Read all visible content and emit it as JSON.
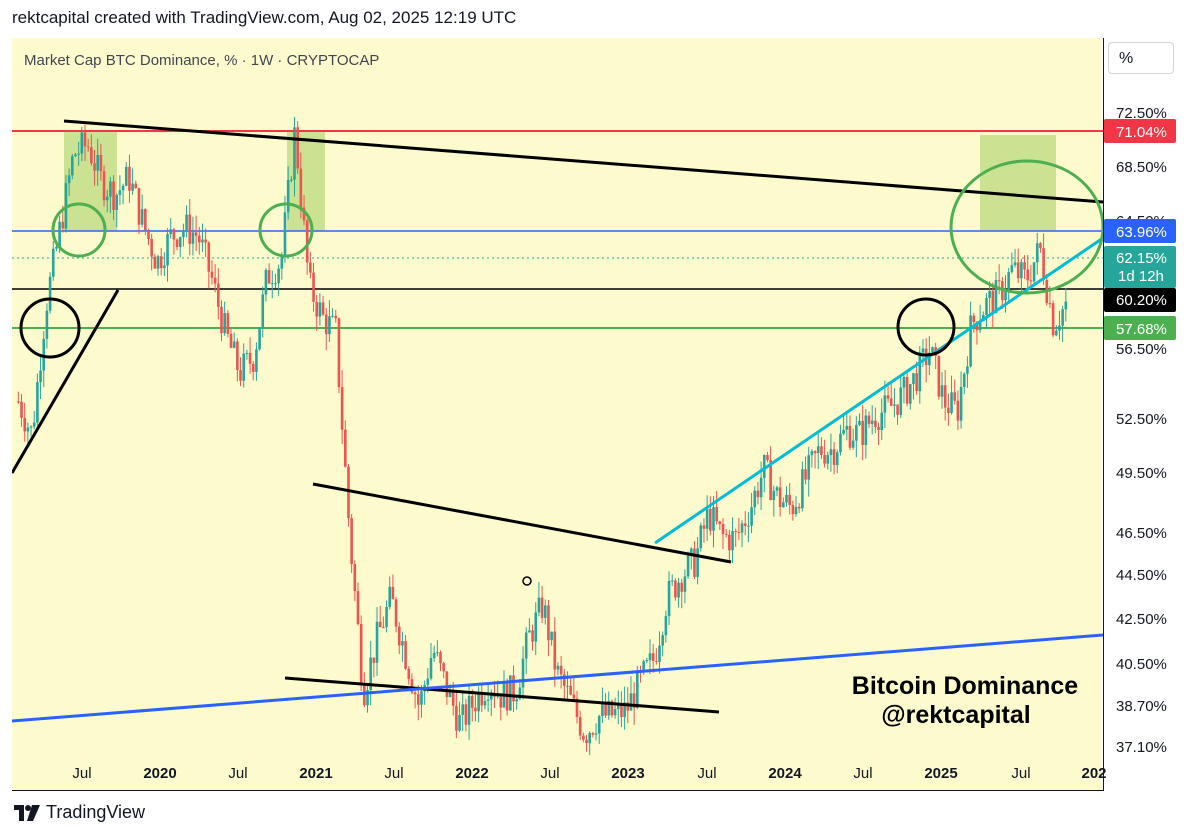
{
  "header": {
    "credit": "rektcapital created with TradingView.com, Aug 02, 2025 12:19 UTC"
  },
  "legend": {
    "symbol_title": "Market Cap BTC Dominance, % · 1W · CRYPTOCAP"
  },
  "unit_button": "%",
  "watermark": {
    "line1": "Bitcoin Dominance",
    "line2": "@rektcapital"
  },
  "footer": {
    "brand": "TradingView",
    "logo_icon": "tradingview-logo-icon"
  },
  "colors": {
    "background": "#fdfbce",
    "up_candle": "#26a69a",
    "down_candle": "#ef5350",
    "resistance_red": "#f23645",
    "level_blue": "#2962ff",
    "level_green": "#4caf50",
    "trend_cyan": "#00bcd4",
    "highlight_green": "#8bc34a"
  },
  "chart_data": {
    "type": "candlestick",
    "title": "Market Cap BTC Dominance, % · 1W · CRYPTOCAP",
    "x_axis": {
      "tick_labels": [
        "Jul",
        "2020",
        "Jul",
        "2021",
        "Jul",
        "2022",
        "Jul",
        "2023",
        "Jul",
        "2024",
        "Jul",
        "2025",
        "Jul",
        "202"
      ],
      "range": [
        "2019-04",
        "2025-11"
      ]
    },
    "y_axis": {
      "unit": "%",
      "tick_labels": [
        "72.50%",
        "68.50%",
        "64.50%",
        "56.50%",
        "52.50%",
        "49.50%",
        "46.50%",
        "44.50%",
        "42.50%",
        "40.50%",
        "38.70%",
        "37.10%"
      ],
      "range": [
        36.9,
        75.8
      ]
    },
    "price_levels": [
      {
        "label": "71.04%",
        "value": 71.04,
        "color": "#f23645",
        "style": "solid"
      },
      {
        "label": "63.96%",
        "value": 63.96,
        "color": "#2962ff",
        "style": "solid"
      },
      {
        "label": "62.15%",
        "sublabel": "1d 12h",
        "value": 62.15,
        "color": "#26a69a",
        "style": "dotted",
        "note": "current price"
      },
      {
        "label": "60.20%",
        "value": 60.2,
        "color": "#000000",
        "style": "solid"
      },
      {
        "label": "57.68%",
        "value": 57.68,
        "color": "#4caf50",
        "style": "solid"
      }
    ],
    "series_close": [
      {
        "date": "2019-04",
        "value": 57.0
      },
      {
        "date": "2019-05",
        "value": 55.3
      },
      {
        "date": "2019-06",
        "value": 62.0
      },
      {
        "date": "2019-07",
        "value": 65.8
      },
      {
        "date": "2019-08",
        "value": 69.8
      },
      {
        "date": "2019-09",
        "value": 70.3
      },
      {
        "date": "2019-10",
        "value": 68.4
      },
      {
        "date": "2019-11",
        "value": 67.7
      },
      {
        "date": "2019-12",
        "value": 68.6
      },
      {
        "date": "2020-01",
        "value": 66.2
      },
      {
        "date": "2020-02",
        "value": 64.2
      },
      {
        "date": "2020-03",
        "value": 65.5
      },
      {
        "date": "2020-04",
        "value": 66.0
      },
      {
        "date": "2020-05",
        "value": 65.6
      },
      {
        "date": "2020-06",
        "value": 63.3
      },
      {
        "date": "2020-07",
        "value": 60.5
      },
      {
        "date": "2020-08",
        "value": 58.5
      },
      {
        "date": "2020-09",
        "value": 59.3
      },
      {
        "date": "2020-10",
        "value": 63.5
      },
      {
        "date": "2020-11",
        "value": 64.3
      },
      {
        "date": "2020-12",
        "value": 71.0
      },
      {
        "date": "2021-01",
        "value": 63.0
      },
      {
        "date": "2021-02",
        "value": 61.3
      },
      {
        "date": "2021-03",
        "value": 60.6
      },
      {
        "date": "2021-04",
        "value": 50.0
      },
      {
        "date": "2021-05",
        "value": 42.0
      },
      {
        "date": "2021-06",
        "value": 44.8
      },
      {
        "date": "2021-07",
        "value": 46.8
      },
      {
        "date": "2021-08",
        "value": 44.0
      },
      {
        "date": "2021-09",
        "value": 41.2
      },
      {
        "date": "2021-10",
        "value": 44.2
      },
      {
        "date": "2021-11",
        "value": 42.1
      },
      {
        "date": "2021-12",
        "value": 40.3
      },
      {
        "date": "2022-01",
        "value": 41.5
      },
      {
        "date": "2022-02",
        "value": 42.5
      },
      {
        "date": "2022-03",
        "value": 41.8
      },
      {
        "date": "2022-04",
        "value": 42.0
      },
      {
        "date": "2022-05",
        "value": 44.8
      },
      {
        "date": "2022-06",
        "value": 46.5
      },
      {
        "date": "2022-07",
        "value": 43.0
      },
      {
        "date": "2022-08",
        "value": 41.5
      },
      {
        "date": "2022-09",
        "value": 39.8
      },
      {
        "date": "2022-10",
        "value": 40.7
      },
      {
        "date": "2022-11",
        "value": 40.8
      },
      {
        "date": "2022-12",
        "value": 41.0
      },
      {
        "date": "2023-01",
        "value": 42.5
      },
      {
        "date": "2023-02",
        "value": 43.7
      },
      {
        "date": "2023-03",
        "value": 46.8
      },
      {
        "date": "2023-04",
        "value": 48.0
      },
      {
        "date": "2023-05",
        "value": 48.7
      },
      {
        "date": "2023-06",
        "value": 51.2
      },
      {
        "date": "2023-07",
        "value": 50.0
      },
      {
        "date": "2023-08",
        "value": 49.9
      },
      {
        "date": "2023-09",
        "value": 51.5
      },
      {
        "date": "2023-10",
        "value": 53.5
      },
      {
        "date": "2023-11",
        "value": 52.0
      },
      {
        "date": "2023-12",
        "value": 51.5
      },
      {
        "date": "2024-01",
        "value": 53.0
      },
      {
        "date": "2024-02",
        "value": 54.5
      },
      {
        "date": "2024-03",
        "value": 54.5
      },
      {
        "date": "2024-04",
        "value": 55.5
      },
      {
        "date": "2024-05",
        "value": 55.3
      },
      {
        "date": "2024-06",
        "value": 56.3
      },
      {
        "date": "2024-07",
        "value": 56.6
      },
      {
        "date": "2024-08",
        "value": 57.3
      },
      {
        "date": "2024-09",
        "value": 58.3
      },
      {
        "date": "2024-10",
        "value": 59.7
      },
      {
        "date": "2024-11",
        "value": 57.0
      },
      {
        "date": "2024-12",
        "value": 56.5
      },
      {
        "date": "2025-01",
        "value": 61.0
      },
      {
        "date": "2025-02",
        "value": 62.0
      },
      {
        "date": "2025-03",
        "value": 62.5
      },
      {
        "date": "2025-04",
        "value": 63.8
      },
      {
        "date": "2025-05",
        "value": 63.3
      },
      {
        "date": "2025-06",
        "value": 64.9
      },
      {
        "date": "2025-07",
        "value": 61.0
      },
      {
        "date": "2025-08",
        "value": 62.15
      }
    ],
    "grid": false,
    "legend": "top-left"
  }
}
